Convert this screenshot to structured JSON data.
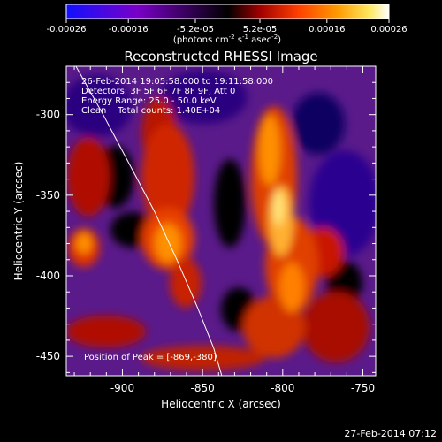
{
  "colorbar": {
    "tick_labels": [
      "-0.00026",
      "-0.00016",
      "-5.2e-05",
      "5.2e-05",
      "0.00016",
      "0.00026"
    ],
    "tick_values": [
      -0.00026,
      -0.00016,
      -5.2e-05,
      5.2e-05,
      0.00016,
      0.00026
    ],
    "range": [
      -0.00026,
      0.00026
    ],
    "unit_main": "(photons cm",
    "unit_sup1": "-2",
    "unit_mid": " s",
    "unit_sup2": "-1",
    "unit_end": " asec",
    "unit_sup3": "-2",
    "unit_close": ")",
    "colors": [
      "#1010ff",
      "#7a00c8",
      "#000000",
      "#a00000",
      "#ff4000",
      "#ff9a00",
      "#ffe860",
      "#ffffff"
    ]
  },
  "chart_data": {
    "type": "heatmap",
    "title": "Reconstructed RHESSI Image",
    "xlabel": "Heliocentric X (arcsec)",
    "ylabel": "Heliocentric Y (arcsec)",
    "xlim": [
      -935,
      -742
    ],
    "ylim": [
      -462,
      -270
    ],
    "x_ticks": [
      -900,
      -850,
      -800,
      -750
    ],
    "y_ticks": [
      -300,
      -350,
      -400,
      -450
    ],
    "x_tick_labels": [
      "-900",
      "-850",
      "-800",
      "-750"
    ],
    "y_tick_labels": [
      "-300",
      "-350",
      "-400",
      "-450"
    ],
    "grid": false,
    "info_lines": [
      "26-Feb-2014 19:05:58.000 to 19:11:58.000",
      "Detectors: 3F 5F 6F 7F 8F 9F, Att 0",
      "Energy Range: 25.0 - 50.0 keV",
      "Clean    Total counts: 1.40E+04"
    ],
    "peak_label": "Position of Peak = [-869,-380]",
    "peak_position": [
      -869,
      -380
    ],
    "limb": [
      [
        -929,
        -270
      ],
      [
        -912,
        -300
      ],
      [
        -896,
        -330
      ],
      [
        -880,
        -360
      ],
      [
        -866,
        -390
      ],
      [
        -853,
        -420
      ],
      [
        -843,
        -445
      ],
      [
        -838,
        -462
      ]
    ]
  },
  "footer_timestamp": "27-Feb-2014 07:12"
}
